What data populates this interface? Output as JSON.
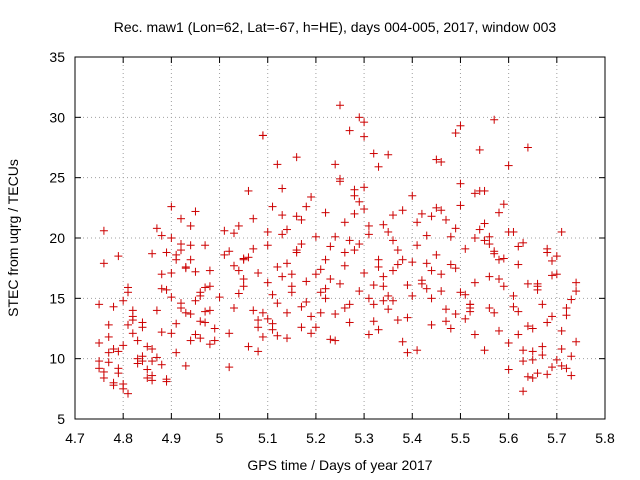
{
  "chart_data": {
    "type": "scatter",
    "title": "Rec. maw1 (Lon=62, Lat=-67, h=HE), days 004-005, 2017, window 003",
    "xlabel": "GPS time / Days of year 2017",
    "ylabel": "STEC from uqrg / TECUs",
    "xlim": [
      4.7,
      5.8
    ],
    "ylim": [
      5,
      35
    ],
    "xticks": [
      "4.7",
      "4.8",
      "4.9",
      "5",
      "5.1",
      "5.2",
      "5.3",
      "5.4",
      "5.5",
      "5.6",
      "5.7",
      "5.8"
    ],
    "yticks": [
      "5",
      "10",
      "15",
      "20",
      "25",
      "30",
      "35"
    ],
    "grid": true,
    "marker_color": "#cc0000",
    "series": [
      {
        "x": [
          4.75,
          4.75,
          4.76,
          4.77,
          4.77,
          4.78,
          4.76,
          4.79,
          4.8,
          4.81,
          4.82,
          4.83,
          4.84,
          4.85,
          4.86,
          4.87,
          4.88,
          4.89,
          4.9,
          4.91,
          4.92,
          4.93,
          4.94,
          4.95,
          4.96,
          4.97,
          4.98,
          4.99,
          4.75,
          4.76,
          4.78,
          4.8,
          4.82,
          4.84,
          4.86,
          4.88,
          4.9,
          4.92,
          4.94,
          4.96,
          4.98,
          4.77,
          4.79,
          4.81,
          4.83,
          4.85,
          4.87,
          4.89,
          4.91,
          4.93,
          4.95,
          4.97,
          4.76,
          4.78,
          4.8,
          4.82,
          4.84,
          4.86,
          4.88,
          4.9,
          4.92,
          4.94,
          4.96,
          4.98,
          4.79,
          4.81,
          4.85,
          4.89,
          4.93,
          4.97,
          4.75,
          4.77,
          4.79,
          4.81,
          4.83,
          4.87,
          4.91,
          4.95,
          4.99,
          4.8,
          4.84,
          4.88,
          4.92,
          4.96,
          4.78,
          4.82,
          4.86,
          4.9,
          4.94,
          4.98,
          4.9,
          4.92,
          4.93,
          4.95,
          4.88,
          4.91,
          4.97,
          4.86,
          4.89,
          4.94,
          5.01,
          5.02,
          5.03,
          5.04,
          5.05,
          5.06,
          5.07,
          5.08,
          5.09,
          5.1,
          5.11,
          5.12,
          5.13,
          5.14,
          5.15,
          5.16,
          5.17,
          5.18,
          5.19,
          5.0,
          5.02,
          5.04,
          5.06,
          5.08,
          5.1,
          5.12,
          5.14,
          5.16,
          5.18,
          5.01,
          5.03,
          5.05,
          5.07,
          5.09,
          5.11,
          5.13,
          5.15,
          5.17,
          5.19,
          5.02,
          5.05,
          5.08,
          5.11,
          5.14,
          5.17,
          5.03,
          5.06,
          5.09,
          5.12,
          5.15,
          5.18,
          5.04,
          5.07,
          5.1,
          5.13,
          5.16,
          5.19,
          5.09,
          5.1,
          5.11,
          5.05,
          5.08,
          5.13,
          5.16,
          5.12,
          5.14,
          5.17,
          5.2,
          5.21,
          5.22,
          5.23,
          5.24,
          5.25,
          5.26,
          5.27,
          5.28,
          5.29,
          5.3,
          5.31,
          5.32,
          5.33,
          5.34,
          5.35,
          5.36,
          5.37,
          5.38,
          5.39,
          5.2,
          5.22,
          5.24,
          5.26,
          5.28,
          5.3,
          5.32,
          5.34,
          5.36,
          5.38,
          5.21,
          5.23,
          5.25,
          5.27,
          5.29,
          5.31,
          5.33,
          5.35,
          5.37,
          5.39,
          5.2,
          5.22,
          5.24,
          5.26,
          5.28,
          5.3,
          5.32,
          5.34,
          5.36,
          5.38,
          5.21,
          5.23,
          5.25,
          5.27,
          5.29,
          5.31,
          5.33,
          5.35,
          5.37,
          5.39,
          5.25,
          5.27,
          5.29,
          5.31,
          5.24,
          5.28,
          5.3,
          5.32,
          5.26,
          5.3,
          5.33,
          5.35,
          5.22,
          5.34,
          5.36,
          5.4,
          5.41,
          5.42,
          5.43,
          5.44,
          5.45,
          5.46,
          5.47,
          5.48,
          5.49,
          5.5,
          5.51,
          5.52,
          5.53,
          5.54,
          5.55,
          5.56,
          5.57,
          5.58,
          5.59,
          5.4,
          5.42,
          5.44,
          5.46,
          5.48,
          5.5,
          5.52,
          5.54,
          5.56,
          5.58,
          5.41,
          5.43,
          5.45,
          5.47,
          5.49,
          5.51,
          5.53,
          5.55,
          5.57,
          5.59,
          5.4,
          5.42,
          5.44,
          5.46,
          5.48,
          5.5,
          5.52,
          5.54,
          5.56,
          5.58,
          5.41,
          5.43,
          5.45,
          5.47,
          5.49,
          5.51,
          5.53,
          5.55,
          5.57,
          5.59,
          5.49,
          5.5,
          5.52,
          5.55,
          5.57,
          5.58,
          5.44,
          5.46,
          5.53,
          5.56,
          5.6,
          5.61,
          5.62,
          5.63,
          5.64,
          5.65,
          5.66,
          5.67,
          5.68,
          5.69,
          5.7,
          5.71,
          5.72,
          5.73,
          5.74,
          5.6,
          5.62,
          5.64,
          5.66,
          5.68,
          5.7,
          5.72,
          5.74,
          5.61,
          5.63,
          5.65,
          5.67,
          5.69,
          5.71,
          5.73,
          5.6,
          5.62,
          5.64,
          5.66,
          5.68,
          5.7,
          5.72,
          5.74,
          5.61,
          5.63,
          5.65,
          5.67,
          5.69,
          5.71,
          5.73,
          5.6,
          5.63,
          5.64,
          5.62,
          5.66,
          5.68,
          5.71,
          5.65,
          5.69
        ],
        "y": [
          14.5,
          9.2,
          8.4,
          10.5,
          12.8,
          7.8,
          20.6,
          18.5,
          7.5,
          7.1,
          13.5,
          9.6,
          13.0,
          11.0,
          9.8,
          14.0,
          12.2,
          8.3,
          15.1,
          12.9,
          14.2,
          13.8,
          11.5,
          12.0,
          15.5,
          13.0,
          11.2,
          12.5,
          9.8,
          17.9,
          10.8,
          14.8,
          12.1,
          10.2,
          8.6,
          9.5,
          12.1,
          19.0,
          13.7,
          13.1,
          14.0,
          11.8,
          8.8,
          15.5,
          10.0,
          9.1,
          20.8,
          18.8,
          10.5,
          17.5,
          17.2,
          15.9,
          8.9,
          14.3,
          7.9,
          13.2,
          12.6,
          8.2,
          17.0,
          20.0,
          14.6,
          19.4,
          11.7,
          16.0,
          10.6,
          12.8,
          8.4,
          8.1,
          9.4,
          13.9,
          11.3,
          9.7,
          9.2,
          15.9,
          11.5,
          10.1,
          18.6,
          14.8,
          11.5,
          11.1,
          9.8,
          15.8,
          21.6,
          15.2,
          8.0,
          14.0,
          18.7,
          22.6,
          18.2,
          17.3,
          17.1,
          19.5,
          17.6,
          22.2,
          20.2,
          18.2,
          19.4,
          10.8,
          15.7,
          21.0,
          18.6,
          9.3,
          20.4,
          15.4,
          16.6,
          23.9,
          14.0,
          10.6,
          28.5,
          19.4,
          12.4,
          14.6,
          21.9,
          11.7,
          15.5,
          26.7,
          12.6,
          16.4,
          23.4,
          15.1,
          12.1,
          17.3,
          11.0,
          13.2,
          16.3,
          17.6,
          13.8,
          19.0,
          14.7,
          20.6,
          14.2,
          18.3,
          21.6,
          11.8,
          12.9,
          20.3,
          16.0,
          21.5,
          12.1,
          18.9,
          16.0,
          12.6,
          15.3,
          20.7,
          14.3,
          17.7,
          18.4,
          13.8,
          11.9,
          17.0,
          22.6,
          21.0,
          19.1,
          13.3,
          16.8,
          21.8,
          13.5,
          28.5,
          20.5,
          22.6,
          18.2,
          17.1,
          24.1,
          18.8,
          26.1,
          17.9,
          19.5,
          20.1,
          13.8,
          18.2,
          16.6,
          11.5,
          31.0,
          18.8,
          14.5,
          23.5,
          19.5,
          28.4,
          15.0,
          13.1,
          25.9,
          16.8,
          14.1,
          17.3,
          19.0,
          11.4,
          10.5,
          12.6,
          15.8,
          20.1,
          14.2,
          19.0,
          24.2,
          16.1,
          21.1,
          14.8,
          18.2,
          17.4,
          11.6,
          24.9,
          19.8,
          15.6,
          21.0,
          18.2,
          15.2,
          17.8,
          13.4,
          17.0,
          22.1,
          13.7,
          17.7,
          22.0,
          17.1,
          14.5,
          16.0,
          19.8,
          22.3,
          15.5,
          19.3,
          16.2,
          13.0,
          23.0,
          12.0,
          17.6,
          20.5,
          13.2,
          16.1,
          24.7,
          28.9,
          30.0,
          20.3,
          26.1,
          24.0,
          29.6,
          27.0,
          21.3,
          22.4,
          12.4,
          26.9,
          15.0,
          14.8,
          21.9,
          23.5,
          10.7,
          16.5,
          20.2,
          17.3,
          26.5,
          15.6,
          13.1,
          17.8,
          20.8,
          22.7,
          15.3,
          14.5,
          12.0,
          23.9,
          19.8,
          14.2,
          18.7,
          22.1,
          16.0,
          18.0,
          16.2,
          15.0,
          22.3,
          12.5,
          24.5,
          13.9,
          20.7,
          19.5,
          16.6,
          21.3,
          17.9,
          22.5,
          21.5,
          13.7,
          19.1,
          20.0,
          10.7,
          13.8,
          18.3,
          15.2,
          22.0,
          21.8,
          17.0,
          20.1,
          15.5,
          14.2,
          27.3,
          16.8,
          12.3,
          19.4,
          15.8,
          18.6,
          14.1,
          17.5,
          13.3,
          23.7,
          21.2,
          18.9,
          22.8,
          28.7,
          29.3,
          14.5,
          23.9,
          29.8,
          18.2,
          12.8,
          26.3,
          16.3,
          20.1,
          20.5,
          14.3,
          12.0,
          9.8,
          16.2,
          12.5,
          8.8,
          10.3,
          18.8,
          13.5,
          9.9,
          10.8,
          14.2,
          8.6,
          16.3,
          11.3,
          19.3,
          8.5,
          15.7,
          13.0,
          17.0,
          9.2,
          15.6,
          20.5,
          7.3,
          10.6,
          14.5,
          18.1,
          9.4,
          10.2,
          9.1,
          17.8,
          12.7,
          16.0,
          8.7,
          18.5,
          13.6,
          11.4,
          15.2,
          10.7,
          8.4,
          11.0,
          9.3,
          12.3,
          14.9,
          26.0,
          19.6,
          27.5,
          13.9,
          16.2,
          19.1,
          20.5,
          9.9,
          16.9
        ]
      }
    ]
  }
}
